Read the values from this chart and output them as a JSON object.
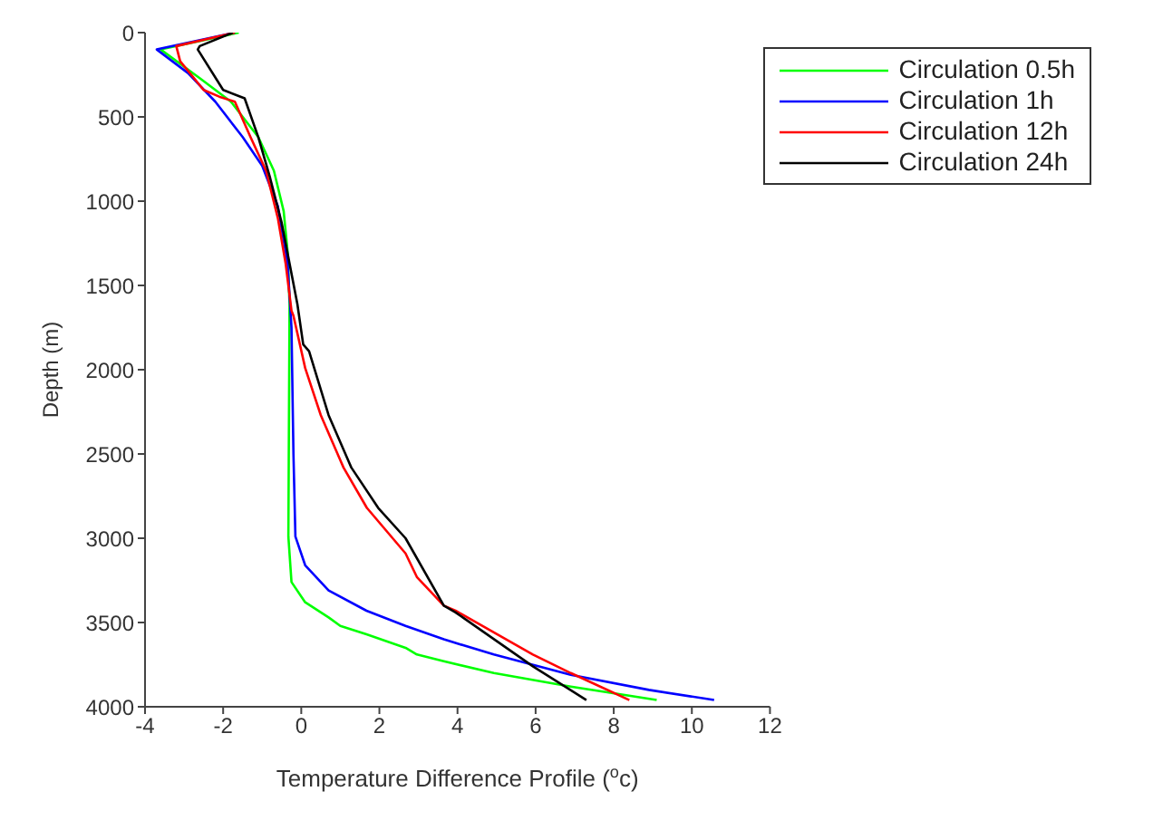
{
  "chart_data": {
    "type": "line",
    "xlabel": "Temperature Difference Profile ($^{o}$c)",
    "ylabel": "Depth (m)",
    "xlim": [
      -4,
      12
    ],
    "xticks": [
      -4,
      -2,
      0,
      2,
      4,
      6,
      8,
      10,
      12
    ],
    "ylim": [
      4000,
      0
    ],
    "yticks": [
      0,
      500,
      1000,
      1500,
      2000,
      2500,
      3000,
      3500,
      4000
    ],
    "grid": false,
    "legend": "top right",
    "marker": "none",
    "line_style": "solid",
    "series": [
      {
        "name": "Circulation 0.5h",
        "color": "#00ff00",
        "x": [
          -1.6,
          -3.6,
          -2.6,
          -1.8,
          -1.1,
          -0.7,
          -0.45,
          -0.35,
          -0.3,
          -0.33,
          -0.25,
          0.1,
          0.7,
          1.0,
          1.67,
          2.67,
          2.96,
          3.65,
          4.93,
          6.9,
          9.1
        ],
        "values": [
          0,
          100,
          270,
          410,
          620,
          820,
          1060,
          1300,
          1610,
          2990,
          3260,
          3380,
          3470,
          3520,
          3570,
          3650,
          3690,
          3730,
          3800,
          3880,
          3960
        ]
      },
      {
        "name": "Circulation 1h",
        "color": "#0000ff",
        "x": [
          -1.7,
          -3.7,
          -2.9,
          -2.2,
          -1.5,
          -1.0,
          -0.6,
          -0.35,
          -0.25,
          -0.2,
          -0.15,
          0.1,
          0.7,
          1.67,
          2.67,
          3.65,
          4.93,
          6.9,
          8.9,
          10.57
        ],
        "values": [
          0,
          100,
          240,
          410,
          620,
          790,
          1030,
          1370,
          1750,
          2500,
          2990,
          3160,
          3310,
          3430,
          3520,
          3600,
          3690,
          3810,
          3900,
          3960
        ]
      },
      {
        "name": "Circulation 12h",
        "color": "#ff0000",
        "x": [
          -1.7,
          -3.2,
          -3.1,
          -2.5,
          -2.1,
          -1.7,
          -1.3,
          -0.9,
          -0.6,
          -0.4,
          -0.25,
          -0.2,
          0.1,
          0.5,
          1.08,
          1.68,
          2.67,
          2.96,
          3.65,
          3.95,
          5.93,
          6.9,
          8.4
        ],
        "values": [
          0,
          80,
          170,
          340,
          380,
          410,
          620,
          820,
          1100,
          1370,
          1650,
          1680,
          1990,
          2270,
          2580,
          2820,
          3090,
          3230,
          3400,
          3430,
          3690,
          3800,
          3960
        ]
      },
      {
        "name": "Circulation 24h",
        "color": "#000000",
        "x": [
          -1.75,
          -2.6,
          -2.65,
          -2.0,
          -1.45,
          -1.1,
          -0.8,
          -0.5,
          -0.3,
          -0.1,
          0.05,
          0.2,
          0.7,
          1.28,
          1.97,
          2.67,
          3.65,
          3.95,
          5.93,
          7.3
        ],
        "values": [
          0,
          80,
          100,
          340,
          390,
          620,
          860,
          1130,
          1370,
          1610,
          1850,
          1890,
          2270,
          2580,
          2820,
          3000,
          3400,
          3440,
          3760,
          3960
        ]
      }
    ]
  }
}
